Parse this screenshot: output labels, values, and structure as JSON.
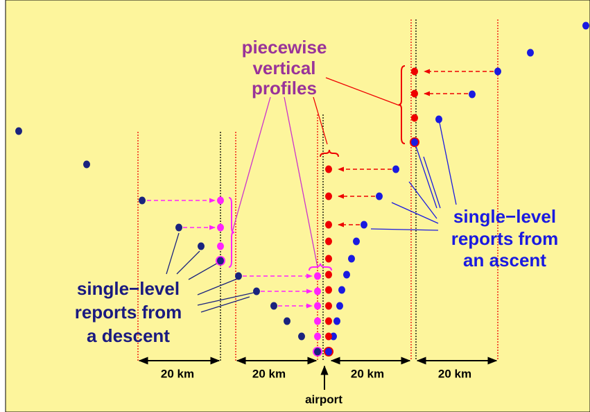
{
  "profiles_label": {
    "lines": [
      "piecewise",
      "vertical",
      "profiles"
    ]
  },
  "ascent_label": {
    "lines": [
      "single−level",
      "reports from",
      "an ascent"
    ]
  },
  "descent_label": {
    "lines": [
      "single−level",
      "reports from",
      "a descent"
    ]
  },
  "distance_labels": [
    "20 km",
    "20 km",
    "20 km",
    "20 km"
  ],
  "airport_label": "airport"
}
